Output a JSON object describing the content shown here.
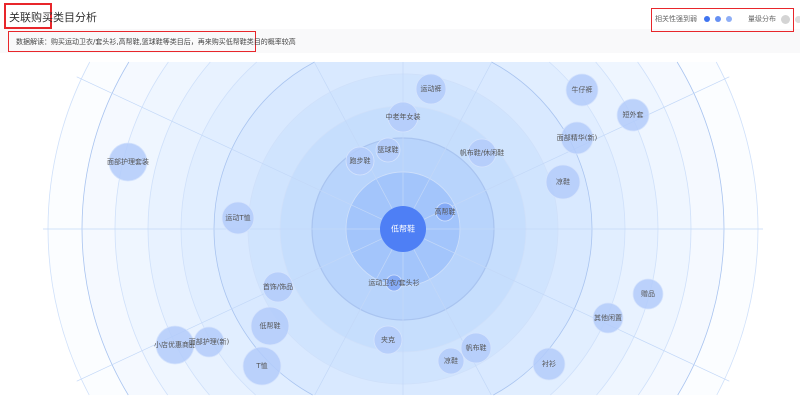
{
  "header": {
    "title": "关联购买类目分析"
  },
  "description": "数据解读：购买运动卫衣/套头衫,高帮鞋,篮球鞋等类目后，再来购买低帮鞋类目的概率较高",
  "legend": {
    "correlation_label": "相关性强到弱",
    "correlation_colors": [
      "#3f74f0",
      "#6690f3",
      "#8eaef6"
    ],
    "volume_label": "量级分布",
    "volume_colors": [
      "#d4d4d4",
      "#dcdcdc",
      "#e2e2e2"
    ]
  },
  "center_node": {
    "label": "低帮鞋",
    "color": "#4e7ff5"
  },
  "nodes": [
    {
      "label": "高帮鞋"
    },
    {
      "label": "运动卫衣/套头衫"
    },
    {
      "label": "篮球鞋"
    },
    {
      "label": "跑步鞋"
    },
    {
      "label": "中老年女装"
    },
    {
      "label": "运动裤"
    },
    {
      "label": "帆布鞋/休闲鞋"
    },
    {
      "label": "凉鞋"
    },
    {
      "label": "面部精华(新)"
    },
    {
      "label": "牛仔裤"
    },
    {
      "label": "短外套"
    },
    {
      "label": "面部护理套装"
    },
    {
      "label": "运动T恤"
    },
    {
      "label": "首饰/饰品"
    },
    {
      "label": "低帮鞋"
    },
    {
      "label": "T恤"
    },
    {
      "label": "小店优惠商品"
    },
    {
      "label": "面部护理(新)"
    },
    {
      "label": "夹克"
    },
    {
      "label": "凉鞋"
    },
    {
      "label": "帆布鞋"
    },
    {
      "label": "衬衫"
    },
    {
      "label": "其他闲置"
    },
    {
      "label": "赠品"
    }
  ]
}
